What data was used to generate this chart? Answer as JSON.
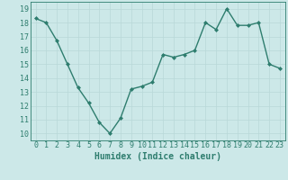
{
  "x": [
    0,
    1,
    2,
    3,
    4,
    5,
    6,
    7,
    8,
    9,
    10,
    11,
    12,
    13,
    14,
    15,
    16,
    17,
    18,
    19,
    20,
    21,
    22,
    23
  ],
  "y": [
    18.3,
    18.0,
    16.7,
    15.0,
    13.3,
    12.2,
    10.8,
    10.0,
    11.1,
    13.2,
    13.4,
    13.7,
    15.7,
    15.5,
    15.7,
    16.0,
    18.0,
    17.5,
    19.0,
    17.8,
    17.8,
    18.0,
    15.0,
    14.7
  ],
  "xlabel": "Humidex (Indice chaleur)",
  "xlim": [
    -0.5,
    23.5
  ],
  "ylim": [
    9.5,
    19.5
  ],
  "yticks": [
    10,
    11,
    12,
    13,
    14,
    15,
    16,
    17,
    18,
    19
  ],
  "xticks": [
    0,
    1,
    2,
    3,
    4,
    5,
    6,
    7,
    8,
    9,
    10,
    11,
    12,
    13,
    14,
    15,
    16,
    17,
    18,
    19,
    20,
    21,
    22,
    23
  ],
  "line_color": "#2e7d6e",
  "marker_color": "#2e7d6e",
  "bg_color": "#cce8e8",
  "grid_color": "#b8d8d8",
  "xlabel_color": "#2e7d6e",
  "tick_color": "#2e7d6e",
  "axis_color": "#2e7d6e",
  "marker": "D",
  "markersize": 2,
  "linewidth": 1.0,
  "xlabel_fontsize": 7,
  "tick_fontsize": 6
}
